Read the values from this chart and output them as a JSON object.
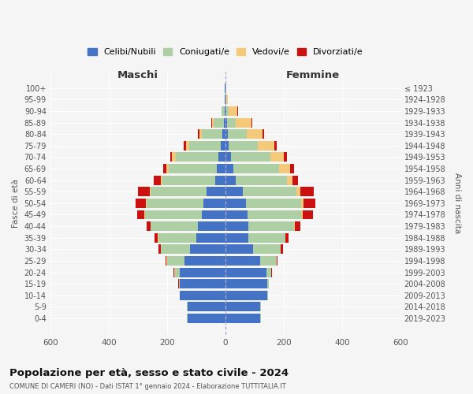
{
  "age_groups": [
    "0-4",
    "5-9",
    "10-14",
    "15-19",
    "20-24",
    "25-29",
    "30-34",
    "35-39",
    "40-44",
    "45-49",
    "50-54",
    "55-59",
    "60-64",
    "65-69",
    "70-74",
    "75-79",
    "80-84",
    "85-89",
    "90-94",
    "95-99",
    "100+"
  ],
  "birth_years": [
    "2019-2023",
    "2014-2018",
    "2009-2013",
    "2004-2008",
    "1999-2003",
    "1994-1998",
    "1989-1993",
    "1984-1988",
    "1979-1983",
    "1974-1978",
    "1969-1973",
    "1964-1968",
    "1959-1963",
    "1954-1958",
    "1949-1953",
    "1944-1948",
    "1939-1943",
    "1934-1938",
    "1929-1933",
    "1924-1928",
    "≤ 1923"
  ],
  "maschi": {
    "celibi": [
      130,
      130,
      155,
      155,
      155,
      140,
      120,
      100,
      95,
      80,
      75,
      65,
      35,
      30,
      25,
      15,
      10,
      5,
      2,
      1,
      1
    ],
    "coniugati": [
      1,
      1,
      2,
      5,
      20,
      60,
      100,
      130,
      160,
      195,
      195,
      190,
      180,
      165,
      145,
      110,
      70,
      35,
      10,
      2,
      1
    ],
    "vedovi": [
      0,
      0,
      0,
      0,
      0,
      1,
      1,
      1,
      1,
      2,
      3,
      4,
      6,
      8,
      12,
      10,
      8,
      5,
      2,
      0,
      0
    ],
    "divorziati": [
      0,
      0,
      0,
      1,
      2,
      5,
      8,
      12,
      15,
      25,
      35,
      40,
      25,
      10,
      8,
      8,
      5,
      2,
      0,
      0,
      0
    ]
  },
  "femmine": {
    "nubili": [
      120,
      120,
      145,
      145,
      140,
      120,
      95,
      80,
      80,
      75,
      70,
      60,
      35,
      28,
      20,
      12,
      8,
      5,
      2,
      1,
      1
    ],
    "coniugate": [
      1,
      1,
      2,
      4,
      18,
      55,
      95,
      125,
      155,
      185,
      190,
      185,
      175,
      155,
      135,
      100,
      65,
      30,
      10,
      2,
      1
    ],
    "vedove": [
      0,
      0,
      0,
      0,
      0,
      1,
      1,
      1,
      2,
      5,
      8,
      12,
      20,
      40,
      45,
      55,
      55,
      55,
      30,
      5,
      1
    ],
    "divorziate": [
      0,
      0,
      0,
      0,
      1,
      3,
      8,
      12,
      20,
      35,
      40,
      45,
      20,
      12,
      10,
      10,
      5,
      3,
      1,
      0,
      0
    ]
  },
  "colors": {
    "celibi": "#4472C4",
    "coniugati": "#AECFA4",
    "vedovi": "#F5C97A",
    "divorziati": "#CC1111"
  },
  "xlim": 600,
  "title": "Popolazione per età, sesso e stato civile - 2024",
  "subtitle": "COMUNE DI CAMERI (NO) - Dati ISTAT 1° gennaio 2024 - Elaborazione TUTTITALIA.IT",
  "xlabel_left": "Maschi",
  "xlabel_right": "Femmine",
  "ylabel_left": "Fasce di età",
  "ylabel_right": "Anni di nascita"
}
